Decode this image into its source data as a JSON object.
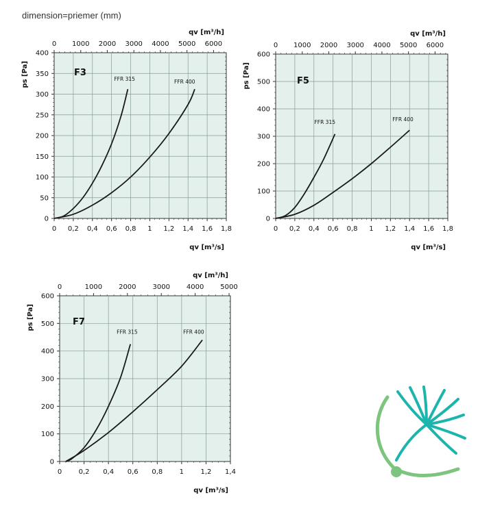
{
  "caption": "dimension=priemer (mm)",
  "logo": {
    "name": "fan-logo",
    "colors": {
      "arc": "#7dc47f",
      "blades": "#1cb5ad"
    }
  },
  "colors": {
    "plot_bg": "#e3f0ec",
    "grid": "#8a9a96",
    "curve": "#1a1a1a"
  },
  "chart_data": [
    {
      "type": "line",
      "title": "F3",
      "xlabel": "qv [m³/s]",
      "x2label": "qv [m³/h]",
      "ylabel": "ps [Pa]",
      "xlim": [
        0,
        1.8
      ],
      "ylim": [
        0,
        400
      ],
      "x2lim": [
        0,
        6480
      ],
      "x_ticks": [
        "0",
        "0,2",
        "0,4",
        "0,6",
        "0,8",
        "1",
        "1,2",
        "1,4",
        "1,6",
        "1,8"
      ],
      "y_ticks": [
        "0",
        "50",
        "100",
        "150",
        "200",
        "250",
        "300",
        "350",
        "400"
      ],
      "x2_ticks": [
        "0",
        "1000",
        "2000",
        "3000",
        "4000",
        "5000",
        "6000"
      ],
      "series": [
        {
          "name": "FFR 315",
          "x": [
            0,
            0.1,
            0.2,
            0.3,
            0.4,
            0.5,
            0.6,
            0.7,
            0.77
          ],
          "y": [
            0,
            6,
            24,
            50,
            85,
            128,
            180,
            248,
            312
          ]
        },
        {
          "name": "FFR 400",
          "x": [
            0,
            0.2,
            0.4,
            0.6,
            0.8,
            1.0,
            1.2,
            1.4,
            1.47
          ],
          "y": [
            0,
            10,
            32,
            62,
            100,
            148,
            205,
            275,
            312
          ]
        }
      ]
    },
    {
      "type": "line",
      "title": "F5",
      "xlabel": "qv [m³/s]",
      "x2label": "qv [m³/h]",
      "ylabel": "ps [Pa]",
      "xlim": [
        0,
        1.8
      ],
      "ylim": [
        0,
        600
      ],
      "x2lim": [
        0,
        6480
      ],
      "x_ticks": [
        "0",
        "0,2",
        "0,4",
        "0,6",
        "0,8",
        "1",
        "1,2",
        "1,4",
        "1,6",
        "1,8"
      ],
      "y_ticks": [
        "0",
        "100",
        "200",
        "300",
        "400",
        "500",
        "600"
      ],
      "x2_ticks": [
        "0",
        "1000",
        "2000",
        "3000",
        "4000",
        "5000",
        "6000"
      ],
      "series": [
        {
          "name": "FFR 315",
          "x": [
            0,
            0.1,
            0.2,
            0.3,
            0.4,
            0.5,
            0.62
          ],
          "y": [
            0,
            10,
            40,
            90,
            150,
            215,
            308
          ]
        },
        {
          "name": "FFR 400",
          "x": [
            0,
            0.2,
            0.4,
            0.6,
            0.8,
            1.0,
            1.2,
            1.4
          ],
          "y": [
            0,
            15,
            48,
            95,
            145,
            200,
            260,
            322
          ]
        }
      ]
    },
    {
      "type": "line",
      "title": "F7",
      "xlabel": "qv [m³/s]",
      "x2label": "qv [m³/h]",
      "ylabel": "ps [Pa]",
      "xlim": [
        0,
        1.4
      ],
      "ylim": [
        0,
        600
      ],
      "x2lim": [
        0,
        5040
      ],
      "x_ticks": [
        "0",
        "0,2",
        "0,4",
        "0,6",
        "0,8",
        "1",
        "1,2",
        "1,4"
      ],
      "y_ticks": [
        "0",
        "100",
        "200",
        "300",
        "400",
        "500",
        "600"
      ],
      "x2_ticks": [
        "0",
        "1000",
        "2000",
        "3000",
        "4000",
        "5000"
      ],
      "series": [
        {
          "name": "FFR 315",
          "x": [
            0.05,
            0.1,
            0.2,
            0.3,
            0.4,
            0.5,
            0.58
          ],
          "y": [
            0,
            10,
            50,
            115,
            200,
            305,
            425
          ]
        },
        {
          "name": "FFR 400",
          "x": [
            0.05,
            0.2,
            0.4,
            0.6,
            0.8,
            1.0,
            1.17
          ],
          "y": [
            0,
            40,
            105,
            180,
            260,
            345,
            440
          ]
        }
      ]
    }
  ]
}
